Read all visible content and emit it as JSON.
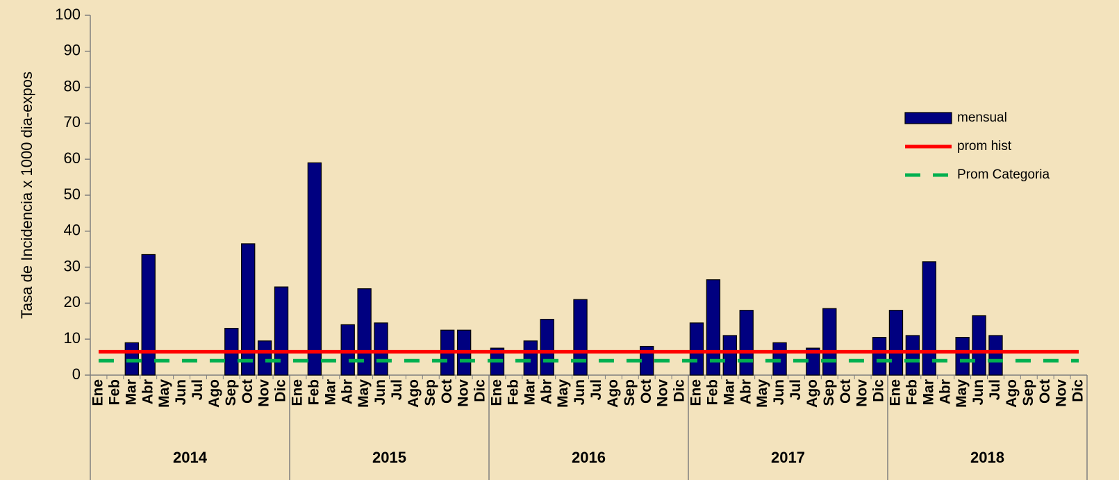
{
  "chart_data": {
    "type": "bar",
    "y_label": "Tasa de Incidencia x 1000 dia-expos",
    "categories": [
      "Ene",
      "Feb",
      "Mar",
      "Abr",
      "May",
      "Jun",
      "Jul",
      "Ago",
      "Sep",
      "Oct",
      "Nov",
      "Dic",
      "Ene",
      "Feb",
      "Mar",
      "Abr",
      "May",
      "Jun",
      "Jul",
      "Ago",
      "Sep",
      "Oct",
      "Nov",
      "Dic",
      "Ene",
      "Feb",
      "Mar",
      "Abr",
      "May",
      "Jun",
      "Jul",
      "Ago",
      "Sep",
      "Oct",
      "Nov",
      "Dic",
      "Ene",
      "Feb",
      "Mar",
      "Abr",
      "May",
      "Jun",
      "Jul",
      "Ago",
      "Sep",
      "Oct",
      "Nov",
      "Dic",
      "Ene",
      "Feb",
      "Mar",
      "Abr",
      "May",
      "Jun",
      "Jul",
      "Ago",
      "Sep",
      "Oct",
      "Nov",
      "Dic"
    ],
    "groups": [
      "2014",
      "2015",
      "2016",
      "2017",
      "2018"
    ],
    "series": [
      {
        "name": "mensual",
        "type": "bar",
        "color": "#000080",
        "values": [
          0,
          0,
          9,
          33.5,
          0,
          0,
          0,
          0,
          13,
          36.5,
          9.5,
          24.5,
          0,
          59,
          0,
          14,
          24,
          14.5,
          0,
          0,
          0,
          12.5,
          12.5,
          0,
          7.5,
          0,
          9.5,
          15.5,
          0,
          21,
          0,
          0,
          0,
          8,
          0,
          0,
          14.5,
          26.5,
          11,
          18,
          0,
          9,
          0,
          7.5,
          18.5,
          0,
          0,
          10.5,
          18,
          11,
          31.5,
          0,
          10.5,
          16.5,
          11,
          0,
          0,
          0,
          0,
          0
        ]
      },
      {
        "name": "prom hist",
        "type": "line",
        "color": "#ff0000",
        "values": [
          6.5,
          6.5,
          6.5,
          6.5,
          6.5,
          6.5,
          6.5,
          6.5,
          6.5,
          6.5,
          6.5,
          6.5,
          6.5,
          6.5,
          6.5,
          6.5,
          6.5,
          6.5,
          6.5,
          6.5,
          6.5,
          6.5,
          6.5,
          6.5,
          6.5,
          6.5,
          6.5,
          6.5,
          6.5,
          6.5,
          6.5,
          6.5,
          6.5,
          6.5,
          6.5,
          6.5,
          6.5,
          6.5,
          6.5,
          6.5,
          6.5,
          6.5,
          6.5,
          6.5,
          6.5,
          6.5,
          6.5,
          6.5,
          6.5,
          6.5,
          6.5,
          6.5,
          6.5,
          6.5,
          6.5,
          6.5,
          6.5,
          6.5,
          6.5,
          6.5
        ]
      },
      {
        "name": "Prom Categoria",
        "type": "line",
        "dashed": true,
        "color": "#00b050",
        "values": [
          4,
          4,
          4,
          4,
          4,
          4,
          4,
          4,
          4,
          4,
          4,
          4,
          4,
          4,
          4,
          4,
          4,
          4,
          4,
          4,
          4,
          4,
          4,
          4,
          4,
          4,
          4,
          4,
          4,
          4,
          4,
          4,
          4,
          4,
          4,
          4,
          4,
          4,
          4,
          4,
          4,
          4,
          4,
          4,
          4,
          4,
          4,
          4,
          4,
          4,
          4,
          4,
          4,
          4,
          4,
          4,
          4,
          4,
          4,
          4
        ]
      }
    ],
    "ylim": [
      0,
      100
    ],
    "yticks": [
      0,
      10,
      20,
      30,
      40,
      50,
      60,
      70,
      80,
      90,
      100
    ],
    "grid": false
  }
}
